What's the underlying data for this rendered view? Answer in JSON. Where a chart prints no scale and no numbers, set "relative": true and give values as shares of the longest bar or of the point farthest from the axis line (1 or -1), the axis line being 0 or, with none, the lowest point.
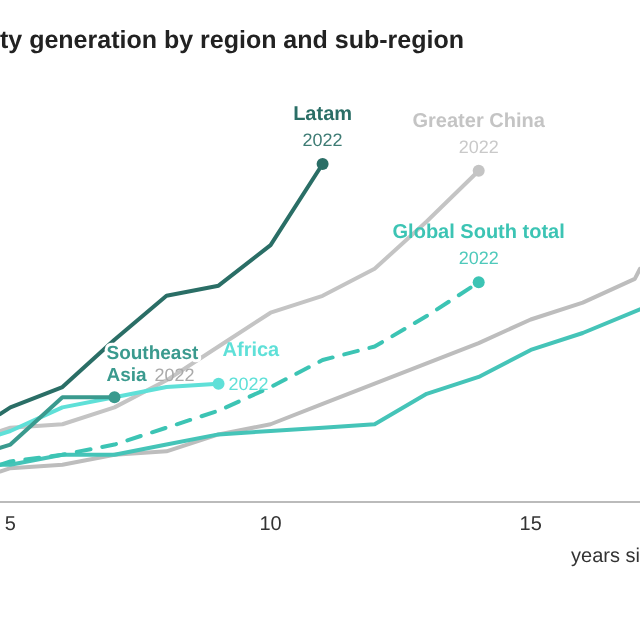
{
  "chart_data": {
    "type": "line",
    "title": "ty generation by region and sub-region",
    "xlabel": "years si",
    "relative": true,
    "xlim": [
      4.8,
      17.1
    ],
    "xticks": [
      5,
      10,
      15
    ],
    "tick_labels": "x",
    "series": [
      {
        "color": "#bdbdbd",
        "x": [
          4.8,
          5,
          6,
          7,
          8,
          9,
          10,
          11,
          12,
          13,
          14,
          15,
          16,
          17,
          17.1
        ],
        "values": [
          0.09,
          0.1,
          0.11,
          0.14,
          0.15,
          0.2,
          0.23,
          0.29,
          0.35,
          0.41,
          0.47,
          0.54,
          0.59,
          0.66,
          0.69
        ]
      },
      {
        "color": "#45c4b8",
        "x": [
          4.8,
          5,
          6,
          7,
          8,
          9,
          10,
          11,
          12,
          13,
          14,
          15,
          16,
          17.1
        ],
        "values": [
          0.11,
          0.11,
          0.14,
          0.14,
          0.17,
          0.2,
          0.21,
          0.22,
          0.23,
          0.32,
          0.37,
          0.45,
          0.5,
          0.57
        ]
      },
      {
        "name": "Greater China",
        "color": "#c4c4c4",
        "x": [
          4.8,
          5,
          6,
          7,
          8,
          9,
          10,
          11,
          12,
          13,
          14
        ],
        "values": [
          0.21,
          0.22,
          0.23,
          0.28,
          0.36,
          0.46,
          0.56,
          0.61,
          0.69,
          0.83,
          0.98
        ]
      },
      {
        "name": "Global South total",
        "color": "#3cc4b4",
        "line_style": "dashed",
        "x": [
          4.8,
          5,
          6,
          7,
          8,
          9,
          10,
          11,
          12,
          13,
          14
        ],
        "values": [
          0.11,
          0.12,
          0.14,
          0.17,
          0.22,
          0.27,
          0.34,
          0.42,
          0.46,
          0.55,
          0.65
        ]
      },
      {
        "name": "Africa",
        "color": "#5fe0d8",
        "x": [
          4.8,
          5,
          6,
          7,
          8,
          9
        ],
        "values": [
          0.2,
          0.21,
          0.28,
          0.31,
          0.34,
          0.35
        ]
      },
      {
        "name": "Southeast Asia",
        "color": "#3a9a8e",
        "x": [
          4.8,
          5,
          6,
          7
        ],
        "values": [
          0.16,
          0.17,
          0.31,
          0.31
        ]
      },
      {
        "name": "Latam",
        "color": "#2a6e66",
        "x": [
          4.8,
          5,
          6,
          7,
          8,
          9,
          10,
          11
        ],
        "values": [
          0.26,
          0.28,
          0.34,
          0.48,
          0.61,
          0.64,
          0.76,
          1.0
        ]
      }
    ],
    "annotations": [
      {
        "text": "2022",
        "x": 14,
        "y": 0.98
      },
      {
        "text": "2022",
        "x": 14,
        "y": 0.65
      },
      {
        "text": "2022",
        "x": 9,
        "y": 0.35
      },
      {
        "text": "2022",
        "x": 7,
        "y": 0.31
      },
      {
        "text": "2022",
        "x": 11,
        "y": 1.0
      }
    ]
  }
}
